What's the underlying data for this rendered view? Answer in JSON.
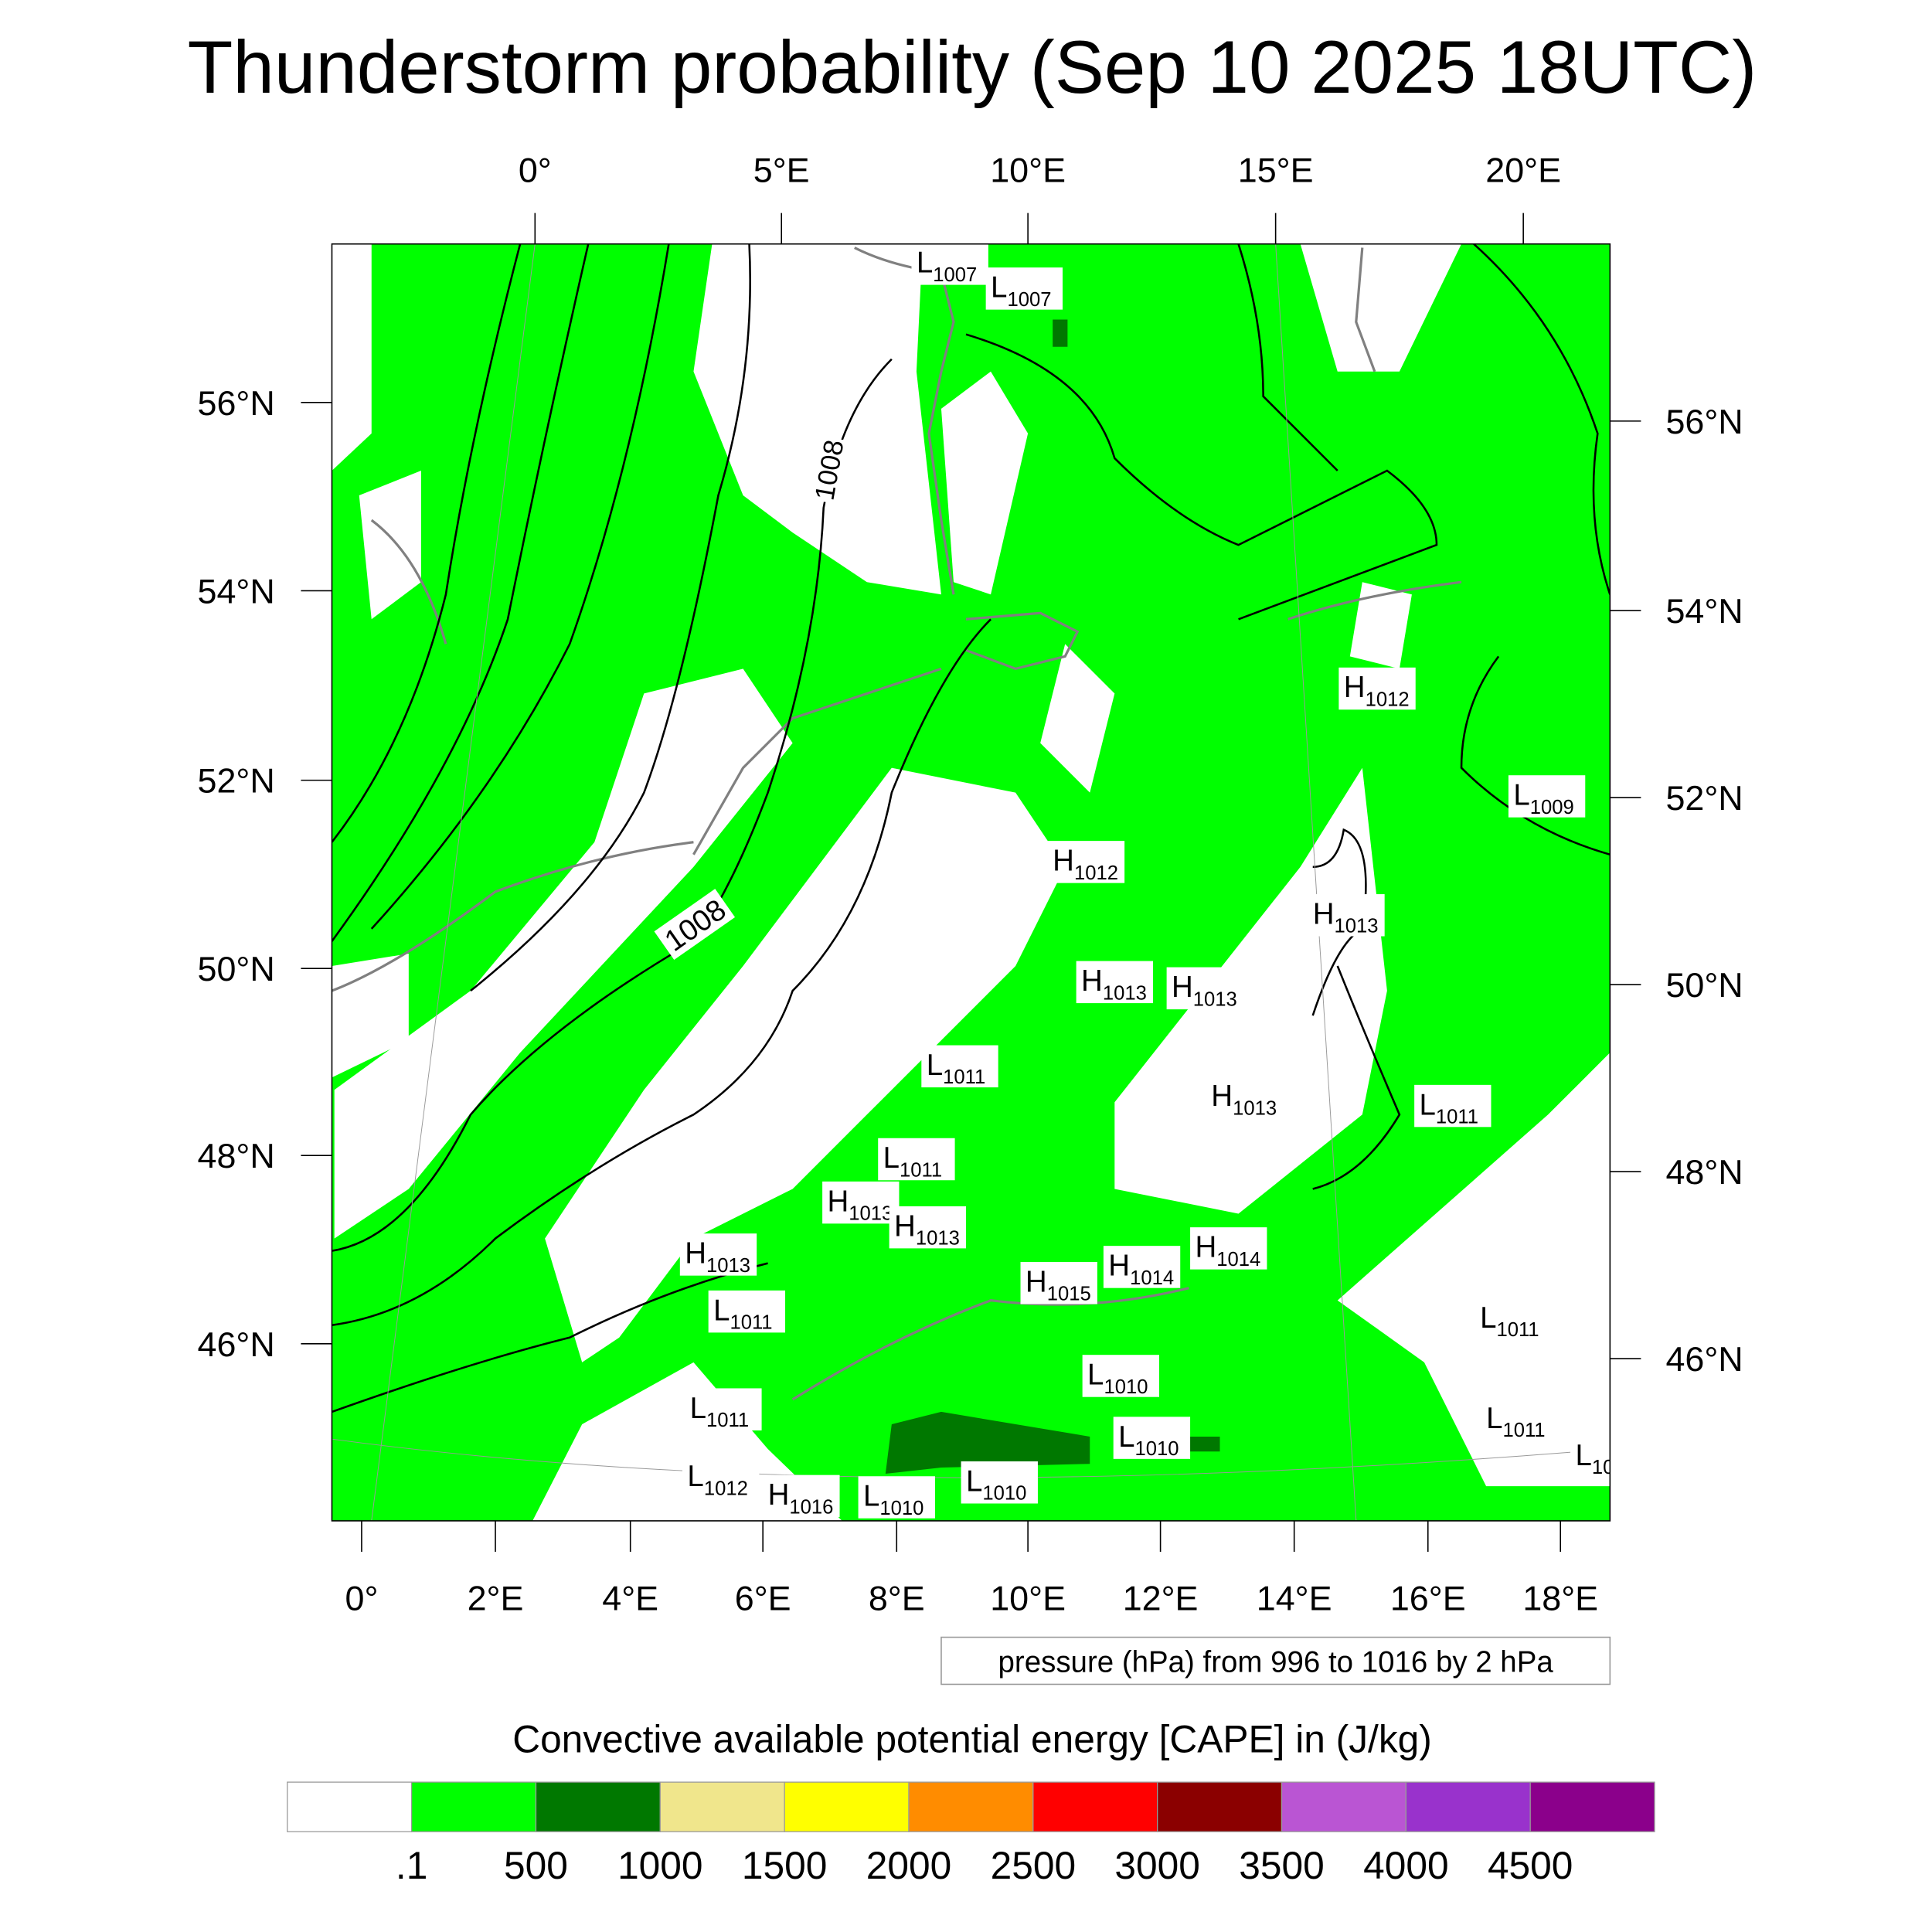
{
  "title": "Thunderstorm probability (Sep 10 2025 18UTC)",
  "top_lon_labels": [
    "0°",
    "5°E",
    "10°E",
    "15°E",
    "20°E"
  ],
  "left_lat_labels": [
    "56°N",
    "54°N",
    "52°N",
    "50°N",
    "48°N",
    "46°N"
  ],
  "right_lat_labels": [
    "56°N",
    "54°N",
    "52°N",
    "50°N",
    "48°N",
    "46°N"
  ],
  "bottom_lon_labels": [
    "0°",
    "2°E",
    "4°E",
    "6°E",
    "8°E",
    "10°E",
    "12°E",
    "14°E",
    "16°E",
    "18°E"
  ],
  "pressure_note": "pressure (hPa) from 996 to 1016 by 2 hPa",
  "isobar_labels": [
    "1008",
    "1008"
  ],
  "pressure_centers": [
    {
      "type": "L",
      "value": "1007"
    },
    {
      "type": "L",
      "value": "1007"
    },
    {
      "type": "H",
      "value": "1012"
    },
    {
      "type": "H",
      "value": "1012"
    },
    {
      "type": "L",
      "value": "1009"
    },
    {
      "type": "H",
      "value": "1013"
    },
    {
      "type": "H",
      "value": "1013"
    },
    {
      "type": "H",
      "value": "1013"
    },
    {
      "type": "L",
      "value": "1011"
    },
    {
      "type": "H",
      "value": "1013"
    },
    {
      "type": "L",
      "value": "1011"
    },
    {
      "type": "L",
      "value": "1011"
    },
    {
      "type": "H",
      "value": "1013"
    },
    {
      "type": "H",
      "value": "1013"
    },
    {
      "type": "H",
      "value": "1013"
    },
    {
      "type": "H",
      "value": "1014"
    },
    {
      "type": "H",
      "value": "1014"
    },
    {
      "type": "H",
      "value": "1015"
    },
    {
      "type": "L",
      "value": "1011"
    },
    {
      "type": "L",
      "value": "1011"
    },
    {
      "type": "L",
      "value": "1010"
    },
    {
      "type": "L",
      "value": "1011"
    },
    {
      "type": "L",
      "value": "1011"
    },
    {
      "type": "L",
      "value": "1010"
    },
    {
      "type": "L",
      "value": "1012"
    },
    {
      "type": "H",
      "value": "1016"
    },
    {
      "type": "L",
      "value": "1010"
    },
    {
      "type": "L",
      "value": "1010"
    },
    {
      "type": "L",
      "value": "10"
    }
  ],
  "colorbar": {
    "title": "Convective available potential energy [CAPE] in (J/kg)",
    "colors": [
      "#ffffff",
      "#00ff00",
      "#007800",
      "#f0e68c",
      "#ffff00",
      "#ff8c00",
      "#ff0000",
      "#8b0000",
      "#ba55d3",
      "#9932cc",
      "#8b008b"
    ],
    "labels": [
      ".1",
      "500",
      "1000",
      "1500",
      "2000",
      "2500",
      "3000",
      "3500",
      "4000",
      "4500"
    ]
  },
  "map_colors": {
    "land_green": "#00ff00",
    "dark_green": "#007800",
    "coast": "#808080",
    "isobar": "#000000"
  }
}
